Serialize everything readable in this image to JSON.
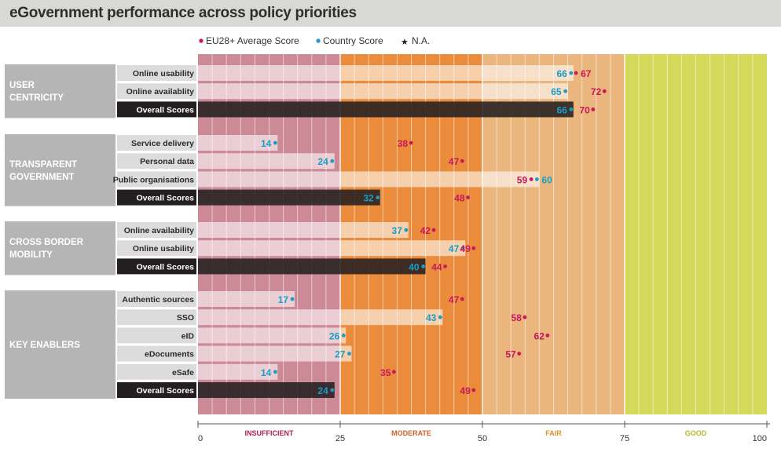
{
  "title": "eGovernment performance across policy priorities",
  "legend": {
    "avg": "EU28+ Average Score",
    "country": "Country Score",
    "na": "N.A."
  },
  "colors": {
    "avg": "#c8185a",
    "country": "#1a9cc8",
    "insufficient": "#cc8a96",
    "moderate": "#ea8c3c",
    "fair": "#eab67e",
    "good": "#d4d95a",
    "category_bg": "#b5b5b5",
    "label_bg": "#dcdcdc",
    "overall_bg": "#231f20",
    "band_insufficient_label": "#b01e50",
    "band_moderate_label": "#d0602a",
    "band_fair_label": "#e0922a",
    "band_good_label": "#b5b82a"
  },
  "chart_data": {
    "type": "bar",
    "xlim": [
      0,
      100
    ],
    "x_ticks": [
      0,
      25,
      50,
      75,
      100
    ],
    "bands": [
      {
        "label": "INSUFFICIENT",
        "from": 0,
        "to": 25
      },
      {
        "label": "MODERATE",
        "from": 25,
        "to": 50
      },
      {
        "label": "FAIR",
        "from": 50,
        "to": 75
      },
      {
        "label": "GOOD",
        "from": 75,
        "to": 100
      }
    ],
    "groups": [
      {
        "category": [
          "USER",
          "CENTRICITY"
        ],
        "rows": [
          {
            "label": "Online usability",
            "country": 66,
            "avg": 67,
            "overall": false
          },
          {
            "label": "Online availablity",
            "country": 65,
            "avg": 72,
            "overall": false
          },
          {
            "label": "Overall Scores",
            "country": 66,
            "avg": 70,
            "overall": true
          }
        ]
      },
      {
        "category": [
          "TRANSPARENT",
          "GOVERNMENT"
        ],
        "rows": [
          {
            "label": "Service delivery",
            "country": 14,
            "avg": 38,
            "overall": false
          },
          {
            "label": "Personal data",
            "country": 24,
            "avg": 47,
            "overall": false
          },
          {
            "label": "Public organisations",
            "country": 60,
            "avg": 59,
            "overall": false
          },
          {
            "label": "Overall Scores",
            "country": 32,
            "avg": 48,
            "overall": true
          }
        ]
      },
      {
        "category": [
          "CROSS BORDER",
          "MOBILITY"
        ],
        "rows": [
          {
            "label": "Online availability",
            "country": 37,
            "avg": 42,
            "overall": false
          },
          {
            "label": "Online usability",
            "country": 47,
            "avg": 49,
            "overall": false
          },
          {
            "label": "Overall Scores",
            "country": 40,
            "avg": 44,
            "overall": true
          }
        ]
      },
      {
        "category": [
          "KEY ENABLERS"
        ],
        "rows": [
          {
            "label": "Authentic sources",
            "country": 17,
            "avg": 47,
            "overall": false
          },
          {
            "label": "SSO",
            "country": 43,
            "avg": 58,
            "overall": false
          },
          {
            "label": "eID",
            "country": 26,
            "avg": 62,
            "overall": false
          },
          {
            "label": "eDocuments",
            "country": 27,
            "avg": 57,
            "overall": false
          },
          {
            "label": "eSafe",
            "country": 14,
            "avg": 35,
            "overall": false
          },
          {
            "label": "Overall Scores",
            "country": 24,
            "avg": 49,
            "overall": true
          }
        ]
      }
    ]
  }
}
